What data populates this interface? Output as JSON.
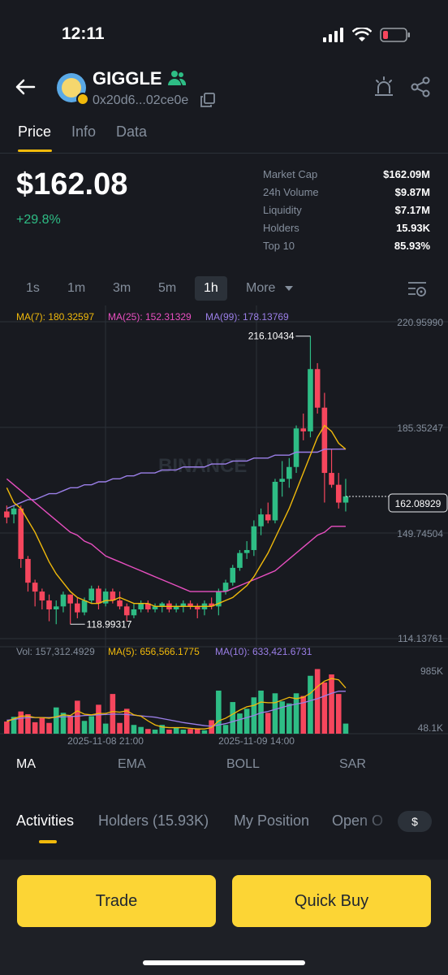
{
  "status": {
    "time": "12:11"
  },
  "token": {
    "name": "GIGGLE",
    "address": "0x20d6...02ce0e"
  },
  "tabs": [
    {
      "label": "Price"
    },
    {
      "label": "Info"
    },
    {
      "label": "Data"
    }
  ],
  "price": {
    "value": "$162.08",
    "change": "+29.8%"
  },
  "stats": [
    {
      "label": "Market Cap",
      "value": "$162.09M"
    },
    {
      "label": "24h Volume",
      "value": "$9.87M"
    },
    {
      "label": "Liquidity",
      "value": "$7.17M"
    },
    {
      "label": "Holders",
      "value": "15.93K"
    },
    {
      "label": "Top 10",
      "value": "85.93%"
    }
  ],
  "timeframes": [
    {
      "label": "1s"
    },
    {
      "label": "1m"
    },
    {
      "label": "3m"
    },
    {
      "label": "5m"
    },
    {
      "label": "1h"
    }
  ],
  "more_label": "More",
  "ma_legend": {
    "ma7": "MA(7): 180.32597",
    "ma25": "MA(25): 152.31329",
    "ma99": "MA(99): 178.13769"
  },
  "price_axis": [
    "220.95990",
    "185.35247",
    "149.74504",
    "114.13761"
  ],
  "price_tag": "162.08929",
  "high_label": "216.10434",
  "low_label": "118.99317",
  "watermark": "BINANCE",
  "volume_legend": {
    "vol": "Vol: 157,312.4929",
    "ma5": "MA(5): 656,566.1775",
    "ma10": "MA(10): 633,421.6731"
  },
  "volume_axis": [
    "985K",
    "48.1K"
  ],
  "time_axis": [
    "2025-11-08 21:00",
    "2025-11-09 14:00"
  ],
  "indicators": [
    {
      "label": "MA"
    },
    {
      "label": "EMA"
    },
    {
      "label": "BOLL"
    },
    {
      "label": "SAR"
    }
  ],
  "sub_tabs": [
    {
      "label": "Activities"
    },
    {
      "label": "Holders (15.93K)"
    },
    {
      "label": "My Position"
    },
    {
      "label": "Open O"
    }
  ],
  "currency_toggle": "$",
  "actions": {
    "trade": "Trade",
    "quick_buy": "Quick Buy"
  },
  "colors": {
    "up": "#2ebd85",
    "down": "#f6465d",
    "accent": "#f0b90b",
    "button": "#fcd535",
    "ma7": "#f0b90b",
    "ma25": "#e84fc0",
    "ma99": "#9b7fe8"
  },
  "chart_data": {
    "type": "candlestick",
    "price_range": [
      114.13761,
      220.9599
    ],
    "candles": [
      {
        "o": 157.0,
        "h": 159.0,
        "l": 153.0,
        "c": 155.0
      },
      {
        "o": 156.0,
        "h": 159.0,
        "l": 153.0,
        "c": 158.0
      },
      {
        "o": 158.0,
        "h": 159.0,
        "l": 138.0,
        "c": 141.0
      },
      {
        "o": 141.0,
        "h": 142.0,
        "l": 130.0,
        "c": 133.0
      },
      {
        "o": 133.0,
        "h": 134.0,
        "l": 125.0,
        "c": 130.0
      },
      {
        "o": 130.0,
        "h": 131.0,
        "l": 124.0,
        "c": 127.0
      },
      {
        "o": 127.0,
        "h": 129.0,
        "l": 120.0,
        "c": 124.0
      },
      {
        "o": 124.0,
        "h": 127.0,
        "l": 119.0,
        "c": 125.0
      },
      {
        "o": 125.0,
        "h": 130.0,
        "l": 123.0,
        "c": 129.0
      },
      {
        "o": 129.0,
        "h": 129.0,
        "l": 118.99,
        "c": 126.0
      },
      {
        "o": 126.0,
        "h": 128.0,
        "l": 121.0,
        "c": 123.0
      },
      {
        "o": 123.0,
        "h": 128.0,
        "l": 122.0,
        "c": 127.0
      },
      {
        "o": 127.0,
        "h": 132.0,
        "l": 126.0,
        "c": 131.0
      },
      {
        "o": 131.0,
        "h": 132.0,
        "l": 124.0,
        "c": 126.0
      },
      {
        "o": 126.0,
        "h": 131.0,
        "l": 125.0,
        "c": 130.0
      },
      {
        "o": 130.0,
        "h": 131.0,
        "l": 126.0,
        "c": 127.0
      },
      {
        "o": 127.0,
        "h": 130.0,
        "l": 124.0,
        "c": 125.0
      },
      {
        "o": 125.0,
        "h": 126.0,
        "l": 120.0,
        "c": 122.0
      },
      {
        "o": 122.0,
        "h": 126.0,
        "l": 121.0,
        "c": 124.0
      },
      {
        "o": 124.0,
        "h": 127.0,
        "l": 123.0,
        "c": 126.0
      },
      {
        "o": 126.0,
        "h": 127.0,
        "l": 123.0,
        "c": 124.0
      },
      {
        "o": 124.0,
        "h": 126.0,
        "l": 123.0,
        "c": 125.0
      },
      {
        "o": 125.0,
        "h": 126.5,
        "l": 123.0,
        "c": 126.0
      },
      {
        "o": 126.0,
        "h": 127.0,
        "l": 123.0,
        "c": 124.0
      },
      {
        "o": 124.0,
        "h": 126.0,
        "l": 123.0,
        "c": 125.0
      },
      {
        "o": 125.0,
        "h": 127.0,
        "l": 123.0,
        "c": 126.0
      },
      {
        "o": 126.0,
        "h": 127.0,
        "l": 124.0,
        "c": 125.0
      },
      {
        "o": 125.0,
        "h": 126.0,
        "l": 121.0,
        "c": 124.0
      },
      {
        "o": 124.0,
        "h": 127.0,
        "l": 122.0,
        "c": 126.0
      },
      {
        "o": 126.0,
        "h": 128.0,
        "l": 124.0,
        "c": 125.0
      },
      {
        "o": 125.0,
        "h": 131.0,
        "l": 122.0,
        "c": 130.0
      },
      {
        "o": 130.0,
        "h": 134.0,
        "l": 129.0,
        "c": 133.0
      },
      {
        "o": 133.0,
        "h": 139.0,
        "l": 132.0,
        "c": 138.0
      },
      {
        "o": 138.0,
        "h": 144.0,
        "l": 137.0,
        "c": 143.0
      },
      {
        "o": 143.0,
        "h": 147.0,
        "l": 141.0,
        "c": 144.0
      },
      {
        "o": 144.0,
        "h": 154.0,
        "l": 142.0,
        "c": 152.0
      },
      {
        "o": 152.0,
        "h": 158.0,
        "l": 149.0,
        "c": 156.0
      },
      {
        "o": 156.0,
        "h": 160.0,
        "l": 153.0,
        "c": 154.0
      },
      {
        "o": 154.0,
        "h": 168.0,
        "l": 153.0,
        "c": 167.0
      },
      {
        "o": 167.0,
        "h": 174.0,
        "l": 162.0,
        "c": 168.0
      },
      {
        "o": 168.0,
        "h": 175.0,
        "l": 165.0,
        "c": 172.0
      },
      {
        "o": 172.0,
        "h": 186.0,
        "l": 170.0,
        "c": 185.0
      },
      {
        "o": 185.0,
        "h": 190.0,
        "l": 181.0,
        "c": 184.0
      },
      {
        "o": 184.0,
        "h": 216.1,
        "l": 182.0,
        "c": 205.0
      },
      {
        "o": 205.0,
        "h": 207.0,
        "l": 190.0,
        "c": 192.0
      },
      {
        "o": 192.0,
        "h": 197.0,
        "l": 160.0,
        "c": 170.0
      },
      {
        "o": 170.0,
        "h": 178.0,
        "l": 165.0,
        "c": 166.0
      },
      {
        "o": 166.0,
        "h": 170.0,
        "l": 158.0,
        "c": 160.0
      },
      {
        "o": 160.0,
        "h": 168.0,
        "l": 157.0,
        "c": 162.08
      }
    ],
    "ma7": [
      165,
      160,
      158,
      154,
      150,
      145,
      140,
      136,
      133,
      130,
      128,
      127,
      126,
      126,
      127,
      127,
      128,
      127,
      126,
      126,
      126,
      125,
      125,
      125,
      125,
      125,
      125,
      125,
      125,
      125,
      126,
      127,
      128,
      130,
      132,
      135,
      139,
      143,
      148,
      153,
      158,
      164,
      170,
      176,
      182,
      186,
      184,
      180,
      178
    ],
    "ma25": [
      168,
      166,
      164,
      162,
      160,
      158,
      156,
      154,
      152,
      150,
      149,
      147,
      146,
      144,
      142,
      141,
      140,
      139,
      138,
      137,
      136,
      135,
      134,
      133,
      132,
      131,
      130,
      130,
      130,
      130,
      130,
      130,
      131,
      132,
      133,
      134,
      135,
      136,
      137,
      139,
      141,
      143,
      145,
      147,
      149,
      150,
      152,
      152,
      152
    ],
    "ma99": [
      158,
      159,
      160,
      161,
      161,
      162,
      163,
      163,
      164,
      165,
      165,
      166,
      166,
      167,
      167,
      168,
      168,
      169,
      169,
      170,
      170,
      170,
      171,
      171,
      171,
      172,
      172,
      172,
      172,
      173,
      173,
      173,
      174,
      174,
      174,
      175,
      175,
      175,
      176,
      176,
      176,
      177,
      177,
      177,
      177,
      178,
      178,
      178,
      178
    ],
    "volume_range": [
      0,
      1050
    ],
    "volumes": [
      180,
      250,
      330,
      290,
      170,
      230,
      160,
      390,
      310,
      270,
      490,
      190,
      260,
      430,
      150,
      590,
      160,
      370,
      130,
      100,
      70,
      60,
      130,
      60,
      90,
      60,
      70,
      80,
      50,
      200,
      640,
      130,
      470,
      300,
      370,
      540,
      640,
      310,
      600,
      480,
      450,
      600,
      560,
      860,
      960,
      760,
      880,
      590,
      150
    ],
    "volume_ma5": [
      180,
      220,
      260,
      260,
      240,
      240,
      230,
      250,
      280,
      270,
      340,
      290,
      280,
      300,
      300,
      330,
      320,
      340,
      280,
      260,
      190,
      130,
      100,
      90,
      90,
      90,
      80,
      70,
      70,
      90,
      190,
      230,
      290,
      350,
      400,
      420,
      470,
      460,
      460,
      500,
      540,
      520,
      540,
      600,
      700,
      780,
      820,
      800,
      680
    ],
    "volume_ma10": [
      200,
      210,
      230,
      240,
      240,
      240,
      240,
      245,
      250,
      255,
      260,
      270,
      275,
      280,
      285,
      290,
      290,
      285,
      275,
      265,
      255,
      245,
      225,
      205,
      185,
      165,
      150,
      135,
      120,
      110,
      130,
      150,
      180,
      210,
      240,
      270,
      310,
      330,
      360,
      390,
      420,
      440,
      460,
      490,
      520,
      560,
      600,
      630,
      630
    ],
    "ylim": [
      114.13761,
      220.9599
    ]
  }
}
